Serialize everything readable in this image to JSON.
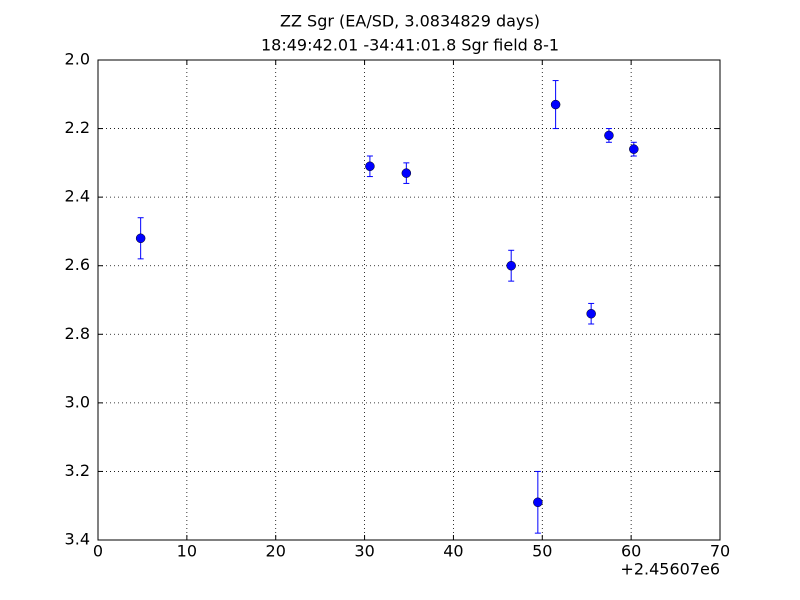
{
  "chart_data": {
    "type": "errorbar",
    "title": "ZZ Sgr (EA/SD, 3.0834829 days)",
    "subtitle": "18:49:42.01 -34:41:01.8 Sgr field 8-1",
    "x_offset_label": "+2.45607e6",
    "series": [
      {
        "color": "#0000ff",
        "x": [
          4.8,
          30.6,
          34.7,
          46.5,
          49.5,
          51.5,
          55.5,
          57.5,
          60.3
        ],
        "values": [
          2.52,
          2.31,
          2.33,
          2.6,
          3.29,
          2.13,
          2.74,
          2.22,
          2.26
        ],
        "errors": [
          0.06,
          0.03,
          0.03,
          0.045,
          0.09,
          0.07,
          0.03,
          0.02,
          0.02
        ]
      }
    ],
    "xlim": [
      0,
      70
    ],
    "xticks": [
      0,
      10,
      20,
      30,
      40,
      50,
      60,
      70
    ],
    "ylim": [
      2.0,
      3.4
    ],
    "invert_y": true,
    "yticks": [
      {
        "value": 2,
        "label": "2.0"
      },
      2.2,
      2.4,
      2.6,
      2.8,
      {
        "value": 3,
        "label": "3.0"
      },
      3.2,
      3.4
    ],
    "grid": true
  }
}
